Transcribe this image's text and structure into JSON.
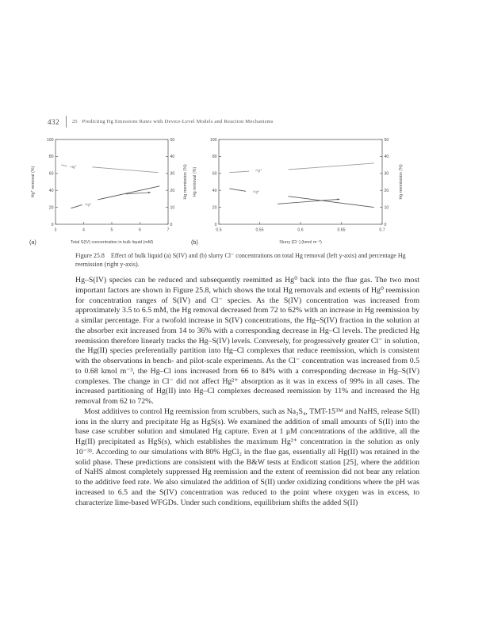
{
  "page": {
    "header": {
      "page_number": "432",
      "chapter_number": "25",
      "chapter_title": "Predicting Hg Emissions Rates with Device-Level Models and Reaction Mechanisms"
    },
    "caption": {
      "label": "Figure 25.8",
      "text": "Effect of bulk liquid (a) S(IV) and (b) slurry Cl⁻ concentrations on total Hg removal (left y-axis) and percentage Hg reemission (right y-axis)."
    },
    "paragraphs": [
      {
        "text": "Hg–S(IV) species can be reduced and subsequently reemitted as Hg⁰ back into the flue gas. The two most important factors are shown in Figure 25.8, which shows the total Hg removals and extents of Hg⁰ reemission for concentration ranges of S(IV) and Cl⁻ species. As the S(IV) concentration was increased from approximately 3.5 to 6.5 mM, the Hg removal decreased from 72 to 62% with an increase in Hg reemission by a similar percentage. For a twofold increase in S(IV) concentrations, the Hg–S(IV) fraction in the solution at the absorber exit increased from 14 to 36% with a corresponding decrease in Hg–Cl levels. The predicted Hg reemission therefore linearly tracks the Hg–S(IV) levels. Conversely, for progressively greater Cl⁻ in solution, the Hg(II) species preferentially partition into Hg–Cl complexes that reduce reemission, which is consistent with the observations in bench- and pilot-scale experiments. As the Cl⁻ concentration was increased from 0.5 to 0.68 kmol m⁻³, the Hg–Cl ions increased from 66 to 84% with a corresponding decrease in Hg–S(IV) complexes. The change in Cl⁻ did not affect Hg²⁺ absorption as it was in excess of 99% in all cases. The increased partitioning of Hg(II) into Hg–Cl complexes decreased reemission by 11% and increased the Hg removal from 62 to 72%."
      },
      {
        "text": "Most additives to control Hg reemission from scrubbers, such as Na₂S₄, TMT-15™ and NaHS, release S(II) ions in the slurry and precipitate Hg as HgS(s). We examined the addition of small amounts of S(II) into the base case scrubber solution and simulated Hg capture. Even at 1 μM concentrations of the additive, all the Hg(II) precipitated as HgS(s), which establishes the maximum Hg²⁺ concentration in the solution as only 10⁻³³. According to our simulations with 80% HgCl₂ in the flue gas, essentially all Hg(II) was retained in the solid phase. These predictions are consistent with the B&W tests at Endicott station [25], where the addition of NaHS almost completely suppressed Hg reemission and the extent of reemission did not bear any relation to the additive feed rate. We also simulated the addition of S(II) under oxidizing conditions where the pH was increased to 6.5 and the S(IV) concentration was reduced to the point where oxygen was in excess, to characterize lime-based WFGDs. Under such conditions, equilibrium shifts the added S(II)"
      }
    ]
  },
  "chart_data": [
    {
      "type": "line",
      "panel_label": "(a)",
      "xlabel": "Total S(IV) concentration in bulk liquid (mM)",
      "ylabel_left": "Hgᵀ removal (%)",
      "ylabel_right": "Hg reemission (%)",
      "xlim": [
        3,
        7
      ],
      "xticks": [
        3,
        4,
        5,
        6,
        7
      ],
      "xtick_labels": [
        "3",
        "4",
        "5",
        "6",
        "7"
      ],
      "ylim_left": [
        0,
        100
      ],
      "yticks_left": [
        0,
        20,
        40,
        60,
        80,
        100
      ],
      "ylim_right": [
        0,
        50
      ],
      "yticks_right": [
        0,
        10,
        20,
        30,
        40,
        50
      ],
      "grid": false,
      "series": [
        {
          "name": "total Hg removal",
          "axis": "left",
          "color": "#9b9b9b",
          "segments": [
            [
              [
                3.2,
                70
              ],
              [
                3.42,
                68.5
              ]
            ],
            [
              [
                4.3,
                67.5
              ],
              [
                6.65,
                61
              ]
            ]
          ],
          "label": {
            "text": "Hgᵀ",
            "x": 3.52,
            "y": 66.5
          },
          "summary": "Hg removal decreases from 72% to 62% as S(IV) goes 3.5 to 6.5 mM"
        },
        {
          "name": "Hg reemission",
          "axis": "right",
          "color": "#565656",
          "segments": [
            [
              [
                3.55,
                9.5
              ],
              [
                3.95,
                11.5
              ]
            ],
            [
              [
                4.5,
                14.5
              ],
              [
                6.7,
                22.5
              ]
            ]
          ],
          "label": {
            "text": "Hg⁰",
            "x": 4.05,
            "y": 11
          },
          "summary": "Hg reemission increases by ~10 percentage points over same range"
        }
      ],
      "annotations": [
        {
          "type": "arrow",
          "axis": "right",
          "from": [
            5.5,
            17.8
          ],
          "to": [
            6.38,
            18.8
          ],
          "color": "#565656"
        }
      ]
    },
    {
      "type": "line",
      "panel_label": "(b)",
      "xlabel": "Slurry [Cl⁻] (kmol m⁻³)",
      "ylabel_left": "Hg removal (%)",
      "ylabel_right": "Hg reemission (%)",
      "xlim": [
        0.5,
        0.7
      ],
      "xticks": [
        0.5,
        0.55,
        0.6,
        0.65,
        0.7
      ],
      "xtick_labels": [
        "0.5",
        "0.55",
        "0.6",
        "0.65",
        "0.7"
      ],
      "ylim_left": [
        0,
        100
      ],
      "yticks_left": [
        0,
        20,
        40,
        60,
        80,
        100
      ],
      "ylim_right": [
        0,
        50
      ],
      "yticks_right": [
        0,
        10,
        20,
        30,
        40,
        50
      ],
      "grid": false,
      "series": [
        {
          "name": "total Hg removal",
          "axis": "left",
          "color": "#9b9b9b",
          "segments": [
            [
              [
                0.513,
                61
              ],
              [
                0.537,
                62.5
              ]
            ],
            [
              [
                0.585,
                64.5
              ],
              [
                0.69,
                72
              ]
            ]
          ],
          "label": {
            "text": "Hgᵀ",
            "x": 0.545,
            "y": 62
          },
          "summary": "Hg removal increases from 62% to 72% as Cl⁻ goes 0.5 to 0.68 kmol/m3"
        },
        {
          "name": "Hg reemission",
          "axis": "right",
          "color": "#565656",
          "segments": [
            [
              [
                0.513,
                21
              ],
              [
                0.533,
                19.5
              ]
            ],
            [
              [
                0.585,
                16.5
              ],
              [
                0.69,
                10
              ]
            ]
          ],
          "label": {
            "text": "Hg⁰",
            "x": 0.542,
            "y": 18.5
          },
          "summary": "Hg reemission decreases by ~11 percentage points over same range"
        }
      ],
      "annotations": [
        {
          "type": "arrow",
          "axis": "right",
          "from": [
            0.572,
            12
          ],
          "to": [
            0.648,
            14.8
          ],
          "color": "#565656"
        }
      ]
    }
  ]
}
